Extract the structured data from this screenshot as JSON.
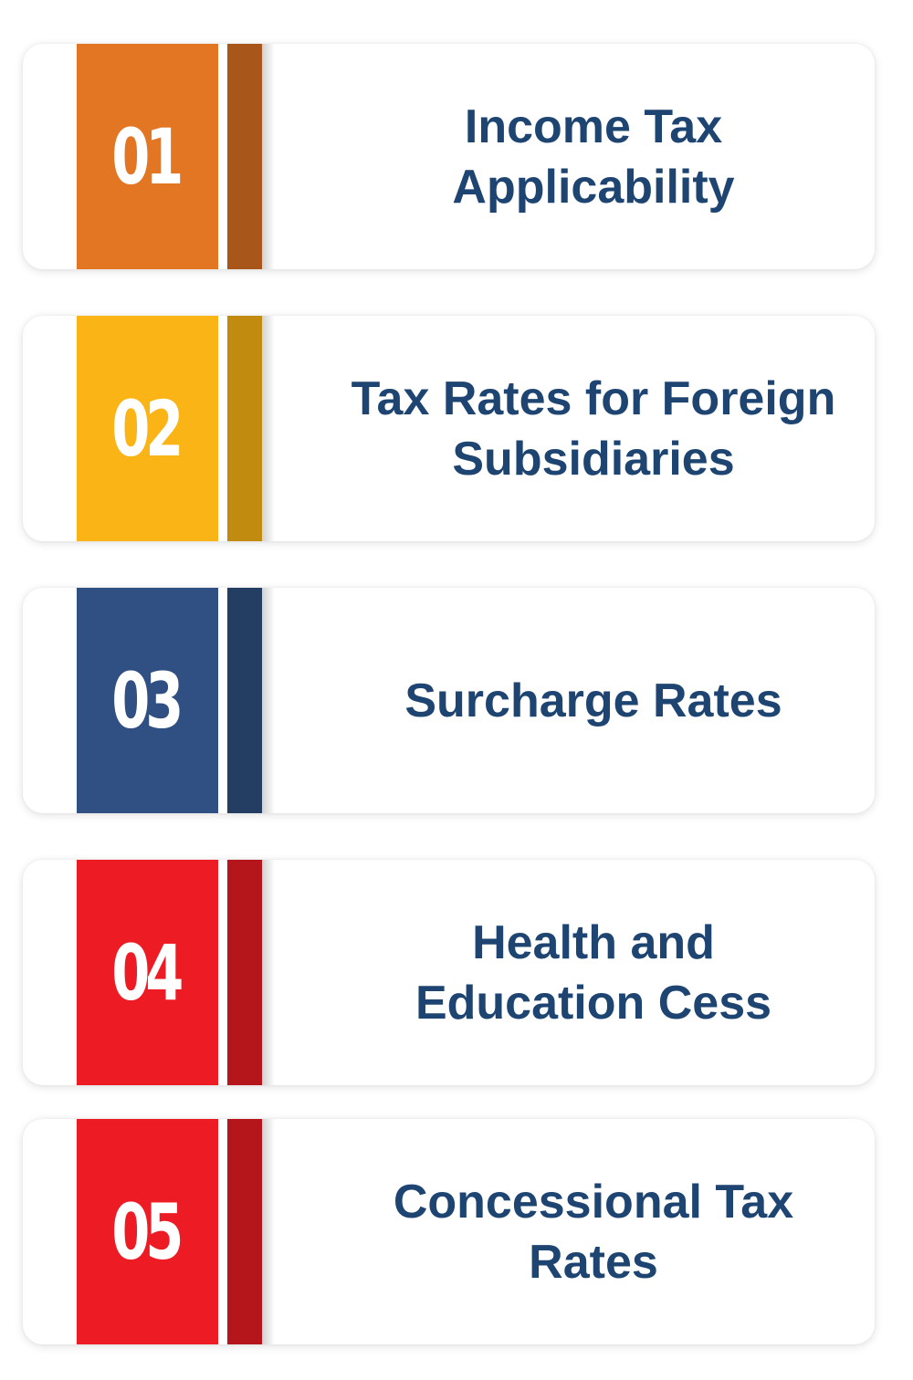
{
  "items": [
    {
      "number": "01",
      "label": "Income Tax Applicability",
      "color": "#e27622",
      "accent_color": "#a9561b"
    },
    {
      "number": "02",
      "label": "Tax Rates for Foreign Subsidiaries",
      "color": "#fbb416",
      "accent_color": "#c18b10"
    },
    {
      "number": "03",
      "label": "Surcharge Rates",
      "color": "#304f83",
      "accent_color": "#233d63"
    },
    {
      "number": "04",
      "label": "Health and Education Cess",
      "color": "#ed1c24",
      "accent_color": "#b5161c"
    },
    {
      "number": "05",
      "label": "Concessional Tax Rates",
      "color": "#ed1c24",
      "accent_color": "#b5161c"
    }
  ]
}
